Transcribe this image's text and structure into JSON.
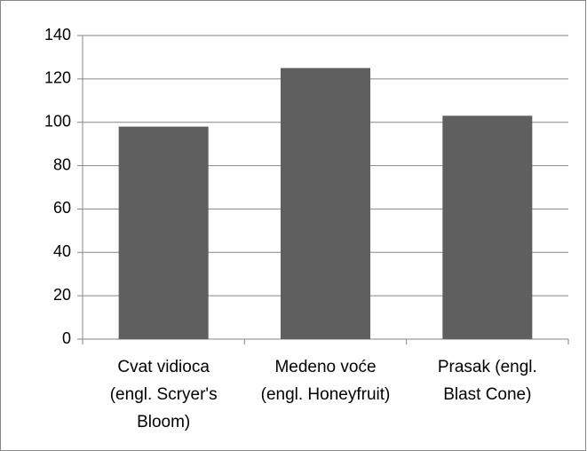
{
  "chart_data": {
    "type": "bar",
    "categories": [
      "Cvat vidioca (engl. Scryer's Bloom)",
      "Medeno voće (engl. Honeyfruit)",
      "Prasak (engl. Blast Cone)"
    ],
    "values": [
      98,
      125,
      103
    ],
    "color": "#5f5f5f",
    "ylim": [
      0,
      140
    ],
    "yticks": [
      0,
      20,
      40,
      60,
      80,
      100,
      120,
      140
    ],
    "grid": true
  }
}
